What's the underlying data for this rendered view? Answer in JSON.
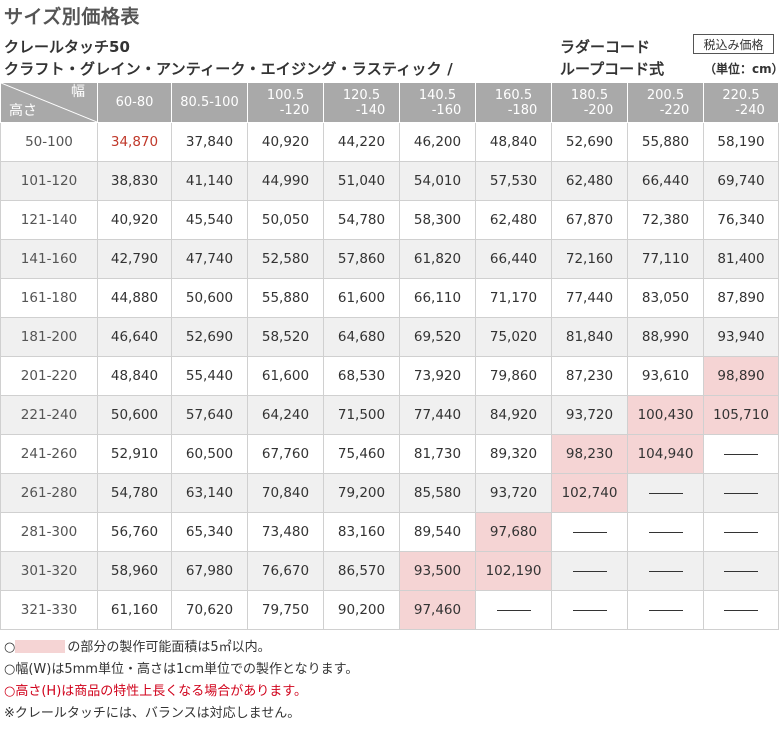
{
  "title": "サイズ別価格表",
  "product_line1": "クレールタッチ50",
  "product_line2": "クラフト・グレイン・アンティーク・エイジング・ラスティック /",
  "cord_line1": "ラダーコード",
  "cord_line2": "ループコード式",
  "tax_label": "税込み価格",
  "unit_label": "（単位：cm）",
  "table": {
    "corner_width": "幅",
    "corner_height": "高さ",
    "width_headers": [
      [
        "60-80",
        ""
      ],
      [
        "80.5-100",
        ""
      ],
      [
        "100.5",
        "-120"
      ],
      [
        "120.5",
        "-140"
      ],
      [
        "140.5",
        "-160"
      ],
      [
        "160.5",
        "-180"
      ],
      [
        "180.5",
        "-200"
      ],
      [
        "200.5",
        "-220"
      ],
      [
        "220.5",
        "-240"
      ]
    ],
    "rows": [
      {
        "height": "50-100",
        "prices": [
          "34,870",
          "37,840",
          "40,920",
          "44,220",
          "46,200",
          "48,840",
          "52,690",
          "55,880",
          "58,190"
        ]
      },
      {
        "height": "101-120",
        "prices": [
          "38,830",
          "41,140",
          "44,990",
          "51,040",
          "54,010",
          "57,530",
          "62,480",
          "66,440",
          "69,740"
        ]
      },
      {
        "height": "121-140",
        "prices": [
          "40,920",
          "45,540",
          "50,050",
          "54,780",
          "58,300",
          "62,480",
          "67,870",
          "72,380",
          "76,340"
        ]
      },
      {
        "height": "141-160",
        "prices": [
          "42,790",
          "47,740",
          "52,580",
          "57,860",
          "61,820",
          "66,440",
          "72,160",
          "77,110",
          "81,400"
        ]
      },
      {
        "height": "161-180",
        "prices": [
          "44,880",
          "50,600",
          "55,880",
          "61,600",
          "66,110",
          "71,170",
          "77,440",
          "83,050",
          "87,890"
        ]
      },
      {
        "height": "181-200",
        "prices": [
          "46,640",
          "52,690",
          "58,520",
          "64,680",
          "69,520",
          "75,020",
          "81,840",
          "88,990",
          "93,940"
        ]
      },
      {
        "height": "201-220",
        "prices": [
          "48,840",
          "55,440",
          "61,600",
          "68,530",
          "73,920",
          "79,860",
          "87,230",
          "93,610",
          "98,890"
        ]
      },
      {
        "height": "221-240",
        "prices": [
          "50,600",
          "57,640",
          "64,240",
          "71,500",
          "77,440",
          "84,920",
          "93,720",
          "100,430",
          "105,710"
        ]
      },
      {
        "height": "241-260",
        "prices": [
          "52,910",
          "60,500",
          "67,760",
          "75,460",
          "81,730",
          "89,320",
          "98,230",
          "104,940",
          ""
        ]
      },
      {
        "height": "261-280",
        "prices": [
          "54,780",
          "63,140",
          "70,840",
          "79,200",
          "85,580",
          "93,720",
          "102,740",
          "",
          ""
        ]
      },
      {
        "height": "281-300",
        "prices": [
          "56,760",
          "65,340",
          "73,480",
          "83,160",
          "89,540",
          "97,680",
          "",
          "",
          ""
        ]
      },
      {
        "height": "301-320",
        "prices": [
          "58,960",
          "67,980",
          "76,670",
          "86,570",
          "93,500",
          "102,190",
          "",
          "",
          ""
        ]
      },
      {
        "height": "321-330",
        "prices": [
          "61,160",
          "70,620",
          "79,750",
          "90,200",
          "97,460",
          "",
          "",
          "",
          ""
        ]
      }
    ],
    "highlighted_cells": [
      [
        6,
        8
      ],
      [
        7,
        7
      ],
      [
        7,
        8
      ],
      [
        8,
        6
      ],
      [
        8,
        7
      ],
      [
        9,
        6
      ],
      [
        10,
        5
      ],
      [
        11,
        4
      ],
      [
        11,
        5
      ],
      [
        12,
        4
      ]
    ],
    "red_cells": [
      [
        0,
        0
      ]
    ],
    "highlight_color": "#f5d4d4",
    "header_color": "#a9a9a9",
    "red_color": "#c0392b"
  },
  "notes": {
    "n1_prefix": "○",
    "n1_suffix": "の部分の製作可能面積は5㎡以内。",
    "n2": "○幅(W)は5mm単位・高さは1cm単位での製作となります。",
    "n3": "○高さ(H)は商品の特性上長くなる場合があります。",
    "n4": "※クレールタッチには、バランスは対応しません。"
  }
}
